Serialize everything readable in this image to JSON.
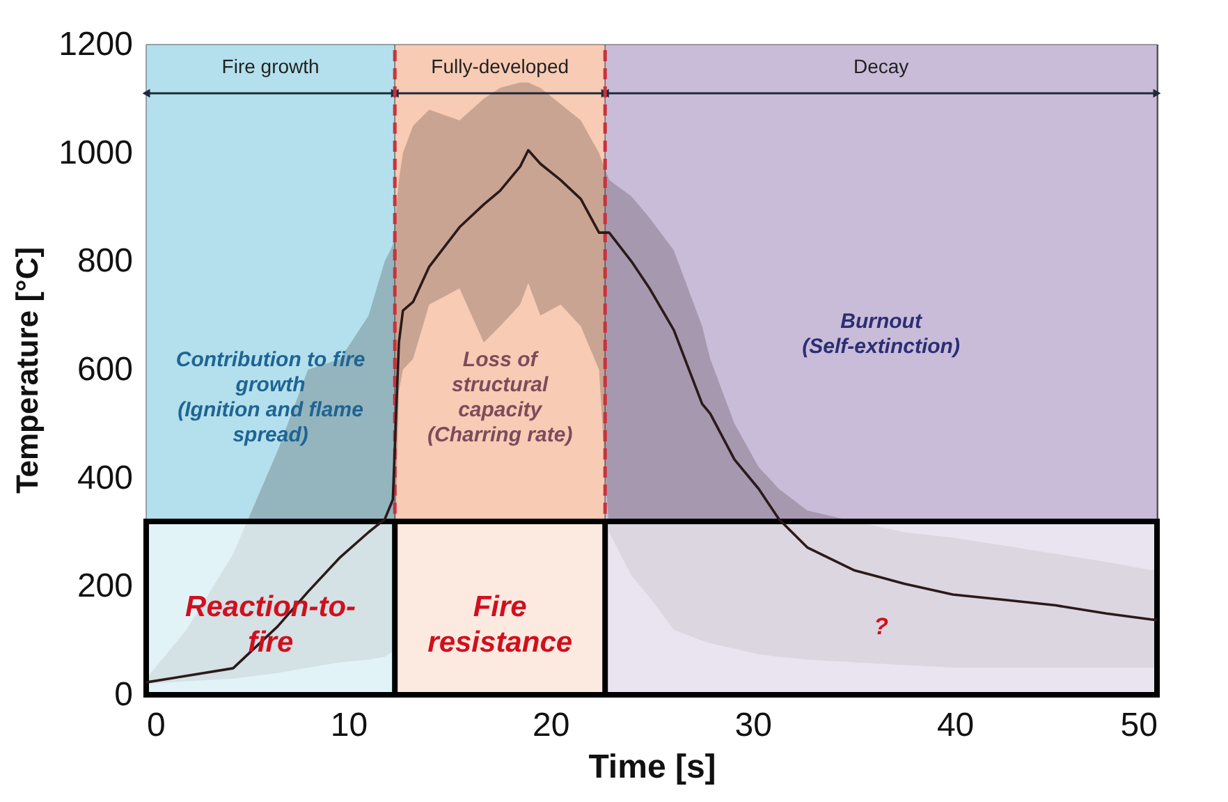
{
  "chart_data": {
    "type": "line",
    "xlabel": "Time [s]",
    "ylabel": "Temperature [°C]",
    "xlim": [
      0,
      50
    ],
    "xticks": [
      0,
      10,
      20,
      30,
      40,
      50
    ],
    "ylim": [
      0,
      1200
    ],
    "yticks": [
      0,
      200,
      400,
      600,
      800,
      1000,
      1200
    ],
    "grid": false,
    "line_style": "solid",
    "marker": "none",
    "series": [
      {
        "color": "#2b1a1a",
        "x": [
          0,
          2,
          4.3,
          6.5,
          8,
          9.6,
          11,
          11.8,
          12.2,
          12.5,
          12.7,
          13.2,
          14,
          15.5,
          16.7,
          17.5,
          18.5,
          18.9,
          19.5,
          20.5,
          21.5,
          22.4,
          22.9,
          24,
          24.9,
          26.1,
          27.5,
          27.9,
          29.1,
          30.3,
          31.3,
          32.7,
          35,
          37.5,
          39.9,
          42.5,
          45,
          47.5,
          49.7,
          50
        ],
        "values": [
          23,
          35,
          49,
          126,
          190,
          254,
          300,
          324,
          360,
          650,
          709,
          725,
          790,
          863,
          905,
          930,
          975,
          1005,
          980,
          950,
          915,
          853,
          853,
          800,
          750,
          673,
          537,
          519,
          434,
          380,
          324,
          272,
          230,
          205,
          185,
          175,
          165,
          150,
          139,
          138
        ],
        "lower": [
          20,
          25,
          30,
          40,
          50,
          60,
          65,
          70,
          80,
          560,
          600,
          620,
          720,
          750,
          650,
          680,
          720,
          760,
          700,
          720,
          680,
          600,
          300,
          220,
          180,
          120,
          100,
          95,
          85,
          75,
          70,
          65,
          60,
          55,
          50,
          50,
          50,
          50,
          50,
          50
        ],
        "upper": [
          30,
          120,
          260,
          450,
          600,
          620,
          700,
          800,
          830,
          950,
          1000,
          1050,
          1080,
          1060,
          1100,
          1120,
          1130,
          1130,
          1120,
          1090,
          1060,
          1000,
          950,
          920,
          880,
          820,
          680,
          620,
          500,
          420,
          380,
          340,
          320,
          300,
          290,
          275,
          260,
          245,
          230,
          230
        ]
      }
    ],
    "ref_lines": [
      {
        "axis": "x",
        "value": 12.3,
        "color": "#c8323c",
        "line_style": "dashed"
      },
      {
        "axis": "x",
        "value": 22.7,
        "color": "#c8323c",
        "line_style": "dashed"
      }
    ],
    "bands": [
      {
        "axis": "x",
        "from": 0,
        "to": 12.3,
        "label": "Fire growth",
        "color": "#b3e0ec"
      },
      {
        "axis": "x",
        "from": 12.3,
        "to": 22.7,
        "label": "Fully-developed",
        "color": "#f8cbb4"
      },
      {
        "axis": "x",
        "from": 22.7,
        "to": 50,
        "label": "Decay",
        "color": "#c9bcd8"
      },
      {
        "axis": "y",
        "from": 0,
        "to": 320,
        "color": "#ffffff"
      }
    ],
    "annotations": [
      "Contribution to fire\ngrowth\n(Ignition and flame\nspread)",
      "Loss of\nstructural\ncapacity\n(Charring rate)",
      "Burnout\n(Self-extinction)",
      "Reaction-to-\nfire",
      "Fire\nresistance",
      "?"
    ]
  }
}
